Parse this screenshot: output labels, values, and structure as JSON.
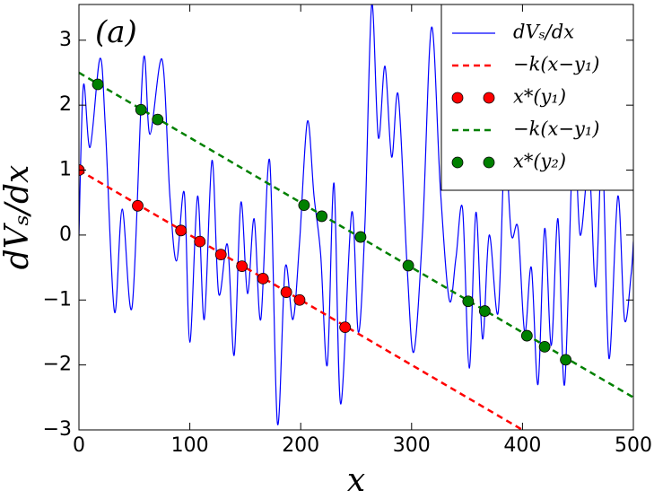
{
  "chart_data": {
    "type": "line",
    "annotation": "(a)",
    "x_label": "x",
    "y_label": "dVₛ/dx",
    "xlim": [
      0,
      500
    ],
    "ylim": [
      -3,
      3.55
    ],
    "xticks": [
      0,
      100,
      200,
      300,
      400,
      500
    ],
    "yticks": [
      -3,
      -2,
      -1,
      0,
      1,
      2,
      3
    ],
    "legend": "upper right",
    "series": [
      {
        "name": "dVₛ/dx",
        "color": "#0000ff",
        "style": "solid",
        "x": [
          0,
          4,
          10,
          19,
          24,
          32,
          39,
          48,
          58,
          64,
          75,
          82,
          88,
          95,
          100,
          107,
          113,
          120,
          126,
          134,
          140,
          146,
          152,
          158,
          164,
          172,
          179,
          186,
          193,
          199,
          206,
          212,
          218,
          224,
          230,
          236,
          246,
          252,
          258,
          264,
          270,
          276,
          282,
          288,
          296,
          302,
          310,
          318,
          326,
          334,
          340,
          346,
          352,
          358,
          364,
          370,
          378,
          384,
          390,
          396,
          402,
          408,
          414,
          420,
          426,
          432,
          438,
          446,
          452,
          460,
          466,
          472,
          478,
          486,
          492,
          498,
          500
        ],
        "values": [
          0,
          2.3,
          1.35,
          2.72,
          1.6,
          -1.18,
          0.4,
          -1.1,
          2.68,
          1.55,
          2.7,
          0.6,
          -0.4,
          0.65,
          -1.65,
          0.6,
          -1.3,
          1.15,
          -0.9,
          -0.15,
          -1.85,
          0.5,
          -0.9,
          0.25,
          -1.3,
          1.15,
          -2.9,
          -0.5,
          -1.3,
          -0.1,
          1.75,
          0.6,
          -0.3,
          -2.0,
          0.8,
          -2.6,
          0.35,
          -1.5,
          0.2,
          3.55,
          1.5,
          2.6,
          1.2,
          2.15,
          -0.5,
          -1.8,
          0.1,
          3.2,
          0.7,
          -1.0,
          -0.35,
          0.4,
          -2.05,
          0.35,
          -1.6,
          0.0,
          -1.2,
          1.3,
          0.0,
          0.1,
          -1.5,
          -0.5,
          -2.3,
          0.1,
          -1.7,
          0.25,
          -2.3,
          1.6,
          0.0,
          1.05,
          -0.8,
          1.3,
          -1.9,
          0.6,
          -1.3,
          -0.6,
          -0.1
        ]
      },
      {
        "name": "−k(x−y₁)",
        "color": "#ff0000",
        "style": "dashed",
        "x": [
          0,
          400
        ],
        "values": [
          1,
          -3
        ]
      },
      {
        "name": "x*(y₁)",
        "color": "#ff0000",
        "style": "markers",
        "x": [
          0,
          53,
          92,
          109,
          128,
          147,
          166,
          187,
          199,
          240
        ],
        "values": [
          1,
          0.45,
          0.07,
          -0.1,
          -0.3,
          -0.48,
          -0.67,
          -0.88,
          -1.0,
          -1.42
        ]
      },
      {
        "name": "−k(x−y₁)",
        "color": "#008000",
        "style": "dashed",
        "x": [
          0,
          500
        ],
        "values": [
          2.5,
          -2.5
        ]
      },
      {
        "name": "x*(y₂)",
        "color": "#008000",
        "style": "markers",
        "x": [
          17,
          56,
          71,
          203,
          219,
          254,
          297,
          351,
          366,
          404,
          420,
          439
        ],
        "values": [
          2.32,
          1.93,
          1.78,
          0.46,
          0.29,
          -0.03,
          -0.47,
          -1.02,
          -1.17,
          -1.55,
          -1.72,
          -1.92
        ]
      }
    ]
  }
}
